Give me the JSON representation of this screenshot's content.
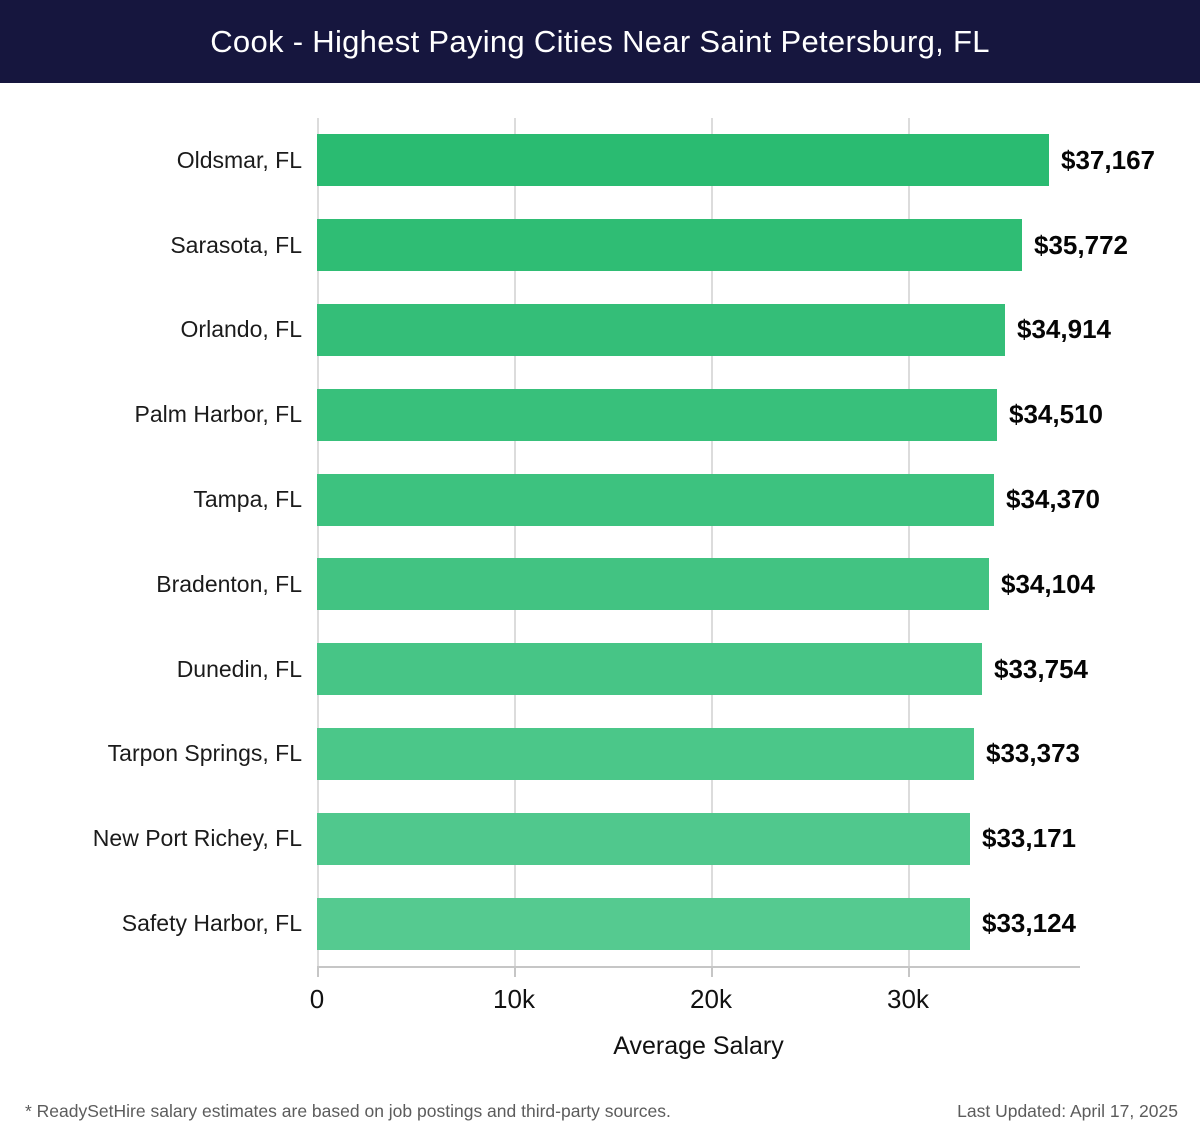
{
  "header": {
    "title": "Cook - Highest Paying Cities Near Saint Petersburg, FL"
  },
  "colors": {
    "header_bg": "#16163e",
    "bar_color_start": "#2abb71",
    "bar_color_end": "#55ca90",
    "gridline": "#dcdcdc",
    "axis_line": "#c6c6c6"
  },
  "chart_data": {
    "type": "bar",
    "orientation": "horizontal",
    "title": "Cook - Highest Paying Cities Near Saint Petersburg, FL",
    "categories": [
      "Oldsmar, FL",
      "Sarasota, FL",
      "Orlando, FL",
      "Palm Harbor, FL",
      "Tampa, FL",
      "Bradenton, FL",
      "Dunedin, FL",
      "Tarpon Springs, FL",
      "New Port Richey, FL",
      "Safety Harbor, FL"
    ],
    "values": [
      37167,
      35772,
      34914,
      34510,
      34370,
      34104,
      33754,
      33373,
      33171,
      33124
    ],
    "value_labels": [
      "$37,167",
      "$35,772",
      "$34,914",
      "$34,510",
      "$34,370",
      "$34,104",
      "$33,754",
      "$33,373",
      "$33,171",
      "$33,124"
    ],
    "xlabel": "Average Salary",
    "ylabel": "",
    "x_ticks": [
      {
        "value": 0,
        "label": "0"
      },
      {
        "value": 10000,
        "label": "10k"
      },
      {
        "value": 20000,
        "label": "20k"
      },
      {
        "value": 30000,
        "label": "30k"
      }
    ],
    "xlim": [
      0,
      38730
    ],
    "grid": true,
    "legend_position": "none"
  },
  "footer": {
    "note": "* ReadySetHire salary estimates are based on job postings and third-party sources.",
    "last_updated": "Last Updated: April 17, 2025"
  }
}
